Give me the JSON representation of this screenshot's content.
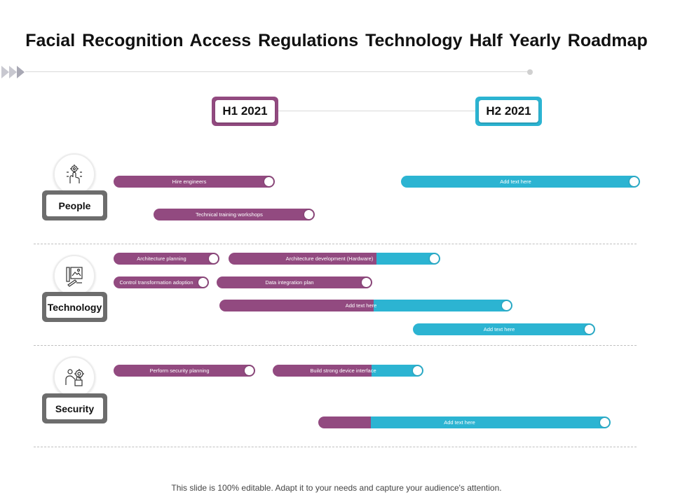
{
  "title": "Facial Recognition Access Regulations Technology Half Yearly Roadmap",
  "footer": "This slide is 100% editable. Adapt it to your needs and capture your audience's attention.",
  "colors": {
    "purple": "#924a80",
    "teal": "#2cb4d2",
    "gray": "#6d6d6d"
  },
  "periods": [
    {
      "label": "H1 2021",
      "color": "#924a80"
    },
    {
      "label": "H2 2021",
      "color": "#2cb4d2"
    }
  ],
  "categories": [
    {
      "label": "People",
      "icon": "gear-hand-icon"
    },
    {
      "label": "Technology",
      "icon": "blueprint-pencil-icon"
    },
    {
      "label": "Security",
      "icon": "person-gear-icon"
    }
  ],
  "bars": [
    {
      "label": "Hire engineers",
      "category": "People"
    },
    {
      "label": "Add text here",
      "category": "People"
    },
    {
      "label": "Technical  training workshops",
      "category": "People"
    },
    {
      "label": "Architecture  planning",
      "category": "Technology"
    },
    {
      "label": "Architecture  development  (Hardware)",
      "category": "Technology"
    },
    {
      "label": "Control transformation  adoption",
      "category": "Technology"
    },
    {
      "label": "Data integration  plan",
      "category": "Technology"
    },
    {
      "label": "Add text here",
      "category": "Technology"
    },
    {
      "label": "Add text here",
      "category": "Technology"
    },
    {
      "label": "Perform security planning",
      "category": "Security"
    },
    {
      "label": "Build strong device interface",
      "category": "Security"
    },
    {
      "label": "",
      "category": "Security"
    },
    {
      "label": "Add text here",
      "category": "Security"
    }
  ]
}
